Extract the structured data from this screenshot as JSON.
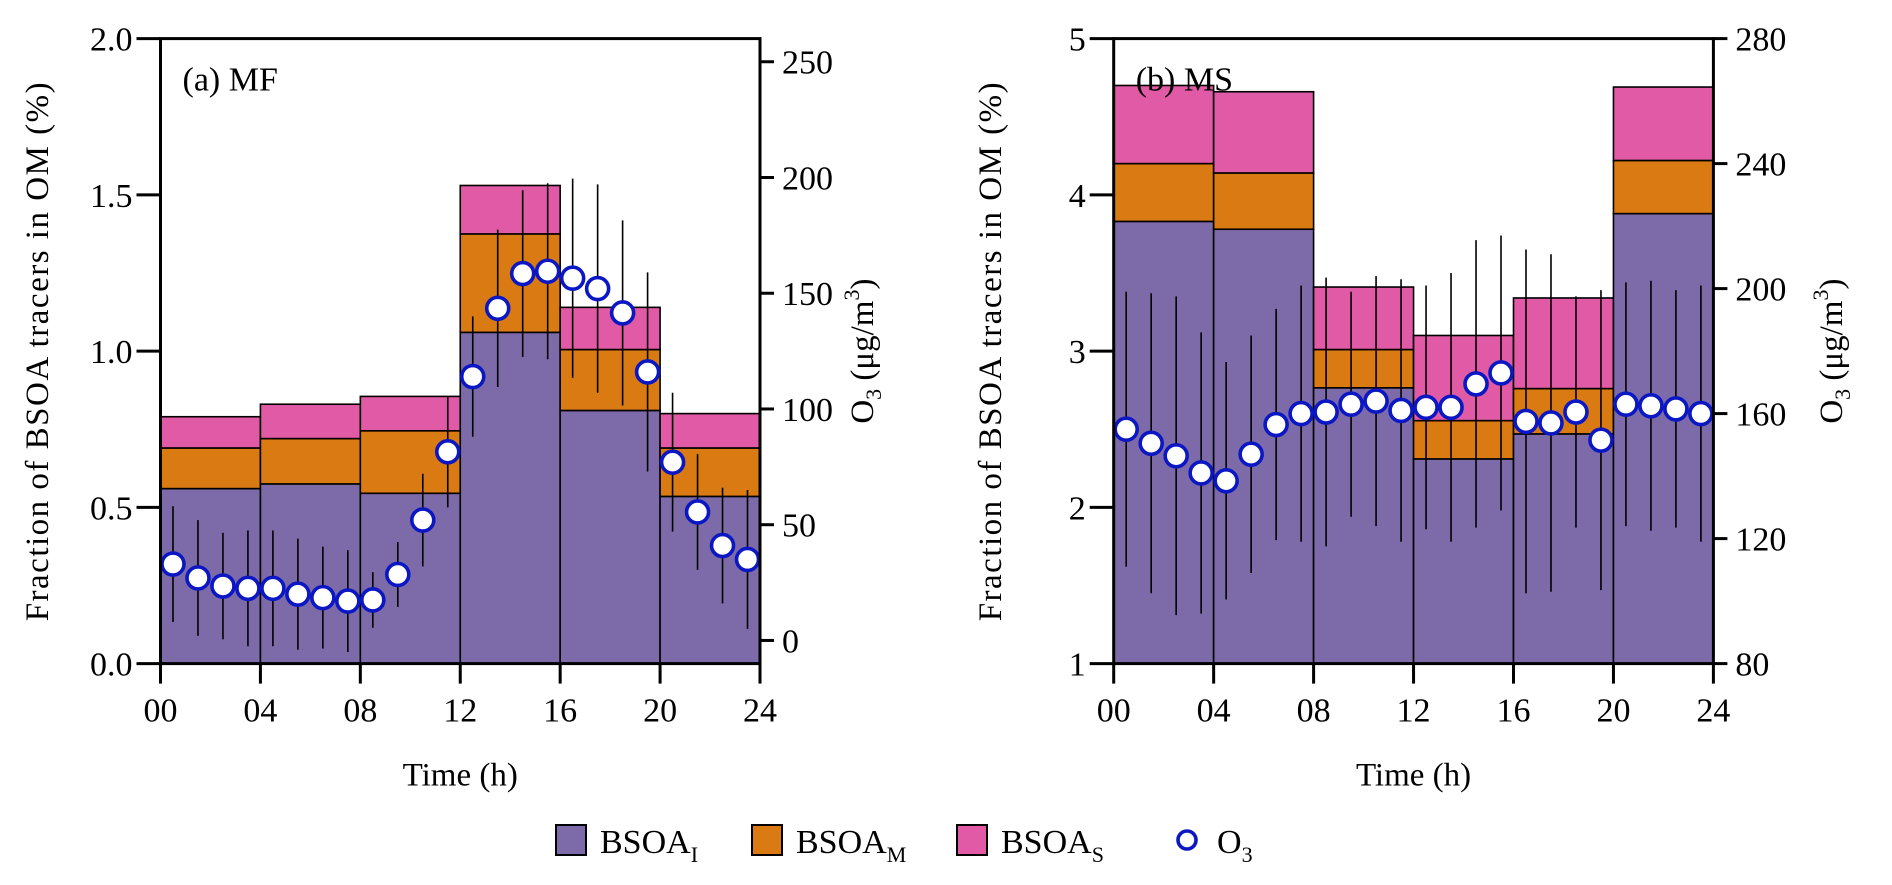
{
  "chart_data": [
    {
      "id": "a",
      "type": "bar",
      "stacked": true,
      "panel_label": "(a) MF",
      "xlabel": "Time (h)",
      "ylabel": "Fraction  of BSOA tracers in OM (%)",
      "y2label_main": "O",
      "y2label_sub": "3",
      "y2label_rest": " (μg/m",
      "y2label_sup": "3",
      "y2label_end": ")",
      "xlim": [
        0,
        24
      ],
      "xticks": [
        "00",
        "04",
        "08",
        "12",
        "16",
        "20",
        "24"
      ],
      "ylim": [
        0,
        2.0
      ],
      "yticks": [
        "0.0",
        "0.5",
        "1.0",
        "1.5",
        "2.0"
      ],
      "ytick_values": [
        0,
        0.5,
        1.0,
        1.5,
        2.0
      ],
      "y2lim": [
        -10,
        260
      ],
      "y2ticks": [
        "0",
        "50",
        "100",
        "150",
        "200",
        "250"
      ],
      "y2tick_values": [
        0,
        50,
        100,
        150,
        200,
        250
      ],
      "bins": [
        [
          0,
          4
        ],
        [
          4,
          8
        ],
        [
          8,
          12
        ],
        [
          12,
          16
        ],
        [
          16,
          20
        ],
        [
          20,
          24
        ]
      ],
      "series": [
        {
          "name": "BSOA_I",
          "values": [
            0.56,
            0.575,
            0.545,
            1.06,
            0.81,
            0.535
          ]
        },
        {
          "name": "BSOA_M",
          "values": [
            0.13,
            0.145,
            0.2,
            0.315,
            0.195,
            0.155
          ]
        },
        {
          "name": "BSOA_S",
          "values": [
            0.1,
            0.11,
            0.11,
            0.155,
            0.135,
            0.11
          ]
        }
      ],
      "o3": {
        "name": "O3",
        "x": [
          0.5,
          1.5,
          2.5,
          3.5,
          4.5,
          5.5,
          6.5,
          7.5,
          8.5,
          9.5,
          10.5,
          11.5,
          12.5,
          13.5,
          14.5,
          15.5,
          16.5,
          17.5,
          18.5,
          19.5,
          20.5,
          21.5,
          22.5,
          23.5
        ],
        "values": [
          33,
          27,
          23.5,
          22.5,
          22.5,
          20,
          18.5,
          17,
          17.5,
          28.5,
          52,
          81.5,
          114,
          143.5,
          158.5,
          159.5,
          156.5,
          152,
          141.5,
          116,
          77,
          55.5,
          41,
          35
        ],
        "errors": [
          25,
          25,
          23,
          25,
          25,
          24,
          22,
          22,
          12,
          14,
          20,
          24,
          26,
          34,
          36,
          38,
          43,
          45,
          40,
          43,
          30,
          25,
          25,
          30
        ]
      }
    },
    {
      "id": "b",
      "type": "bar",
      "stacked": true,
      "panel_label": "(b) MS",
      "xlabel": "Time (h)",
      "ylabel": "Fraction  of BSOA tracers in OM (%)",
      "y2label_main": "O",
      "y2label_sub": "3",
      "y2label_rest": " (μg/m",
      "y2label_sup": "3",
      "y2label_end": ")",
      "xlim": [
        0,
        24
      ],
      "xticks": [
        "00",
        "04",
        "08",
        "12",
        "16",
        "20",
        "24"
      ],
      "ylim": [
        1,
        5
      ],
      "yticks": [
        "1",
        "2",
        "3",
        "4",
        "5"
      ],
      "ytick_values": [
        1,
        2,
        3,
        4,
        5
      ],
      "y2lim": [
        80,
        280
      ],
      "y2ticks": [
        "80",
        "120",
        "160",
        "200",
        "240",
        "280"
      ],
      "y2tick_values": [
        80,
        120,
        160,
        200,
        240,
        280
      ],
      "bins": [
        [
          0,
          4
        ],
        [
          4,
          8
        ],
        [
          8,
          12
        ],
        [
          12,
          16
        ],
        [
          16,
          20
        ],
        [
          20,
          24
        ]
      ],
      "series": [
        {
          "name": "BSOA_I",
          "values": [
            2.83,
            2.78,
            1.765,
            1.31,
            1.47,
            2.88
          ]
        },
        {
          "name": "BSOA_M",
          "values": [
            0.37,
            0.36,
            0.245,
            0.245,
            0.29,
            0.34
          ]
        },
        {
          "name": "BSOA_S",
          "values": [
            0.5,
            0.52,
            0.4,
            0.545,
            0.58,
            0.47
          ]
        }
      ],
      "o3": {
        "name": "O3",
        "x": [
          0.5,
          1.5,
          2.5,
          3.5,
          4.5,
          5.5,
          6.5,
          7.5,
          8.5,
          9.5,
          10.5,
          11.5,
          12.5,
          13.5,
          14.5,
          15.5,
          16.5,
          17.5,
          18.5,
          19.5,
          20.5,
          21.5,
          22.5,
          23.5
        ],
        "values": [
          155,
          150.5,
          146.5,
          141,
          138.5,
          147,
          156.5,
          160,
          160.5,
          163,
          164,
          161,
          162,
          162,
          169.5,
          173,
          157.5,
          157,
          160.5,
          151.5,
          163,
          162.5,
          161.5,
          160
        ],
        "errors": [
          44,
          48,
          51,
          45,
          38,
          38,
          37,
          41,
          43,
          36,
          40,
          42,
          39,
          43,
          46,
          44,
          55,
          54,
          37,
          48,
          39,
          40,
          38,
          41
        ]
      }
    }
  ],
  "legend": {
    "items": [
      {
        "kind": "box",
        "label": "BSOA",
        "sub": "I",
        "color": "#7d6aa8"
      },
      {
        "kind": "box",
        "label": "BSOA",
        "sub": "M",
        "color": "#d97b12"
      },
      {
        "kind": "box",
        "label": "BSOA",
        "sub": "S",
        "color": "#e05aa6"
      },
      {
        "kind": "circle",
        "label": "O",
        "sub": "3",
        "color": "#0b17c2"
      }
    ]
  },
  "colors": {
    "BSOA_I": "#7d6aa8",
    "BSOA_M": "#d97b12",
    "BSOA_S": "#e05aa6",
    "O3_edge": "#0b17c2",
    "O3_fill": "#ffffff"
  }
}
